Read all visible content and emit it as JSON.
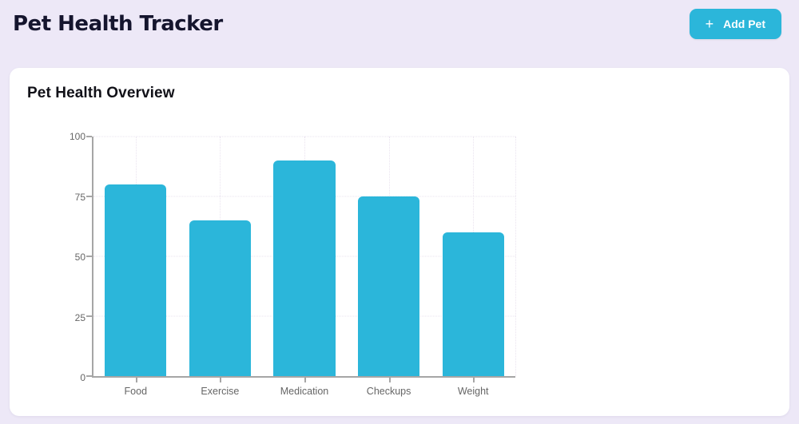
{
  "header": {
    "title": "Pet Health Tracker",
    "add_pet_button": {
      "label": "Add Pet",
      "icon": "+"
    }
  },
  "card": {
    "title": "Pet Health Overview"
  },
  "chart_data": {
    "type": "bar",
    "title": "Pet Health Overview",
    "categories": [
      "Food",
      "Exercise",
      "Medication",
      "Checkups",
      "Weight"
    ],
    "values": [
      80,
      65,
      90,
      75,
      60
    ],
    "xlabel": "",
    "ylabel": "",
    "ylim": [
      0,
      100
    ],
    "yticks": [
      0,
      25,
      50,
      75,
      100
    ],
    "bar_color": "#2BB6DA",
    "grid": "dotted-horizontal-and-vertical",
    "legend": "none"
  },
  "colors": {
    "accent": "#2BB6DA",
    "page_background": "#EDE8F7",
    "card_background": "#FFFFFF",
    "title_text": "#15152E",
    "axis_text": "#666666"
  }
}
